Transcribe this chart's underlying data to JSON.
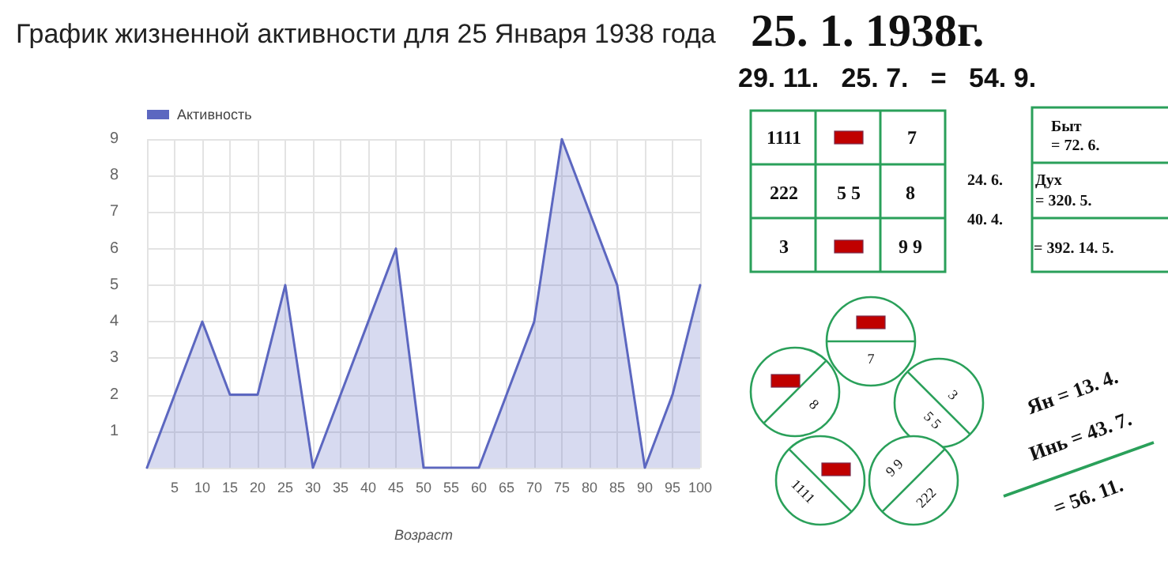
{
  "chart_data": [
    {
      "type": "area",
      "title": "График жизненной активности для 25 Января 1938 года",
      "xlabel": "Возраст",
      "x": [
        0,
        5,
        10,
        15,
        20,
        25,
        30,
        35,
        40,
        45,
        50,
        55,
        60,
        65,
        70,
        75,
        80,
        85,
        90,
        95,
        100
      ],
      "series": [
        {
          "name": "Активность",
          "color": "#5c67c0",
          "values": [
            0,
            2,
            4,
            2,
            2,
            5,
            0,
            2,
            4,
            6,
            0,
            0,
            0,
            2,
            4,
            9,
            7,
            5,
            0,
            2,
            5
          ]
        }
      ],
      "xlim": [
        0,
        100
      ],
      "xticks": [
        {
          "value": 0,
          "label": null
        },
        5,
        10,
        15,
        20,
        25,
        30,
        35,
        40,
        45,
        50,
        55,
        60,
        65,
        70,
        75,
        80,
        85,
        90,
        95,
        100
      ],
      "ylim": [
        0,
        9
      ],
      "yticks": [
        {
          "value": 0,
          "label": null
        },
        1,
        2,
        3,
        4,
        5,
        6,
        7,
        8,
        9
      ],
      "grid": true,
      "legend": "top left",
      "marker": "none",
      "line_style": "solid"
    },
    {
      "type": "other",
      "annotations": [
        "25. 1. 1938г.",
        "29. 11.   25. 7.   =   54. 9.",
        "1111",
        "7",
        "222",
        "5 5",
        "8",
        "3",
        "9 9",
        "24. 6.",
        "40. 4.",
        "Быт",
        "= 72. 6.",
        "Дух",
        "= 320. 5.",
        "= 392. 14. 5.",
        "7",
        "8",
        "3",
        "5 5",
        "9 9",
        "222",
        "1111",
        "Ян = 13. 4.",
        "Инь = 43. 7.",
        "= 56. 11."
      ]
    }
  ]
}
